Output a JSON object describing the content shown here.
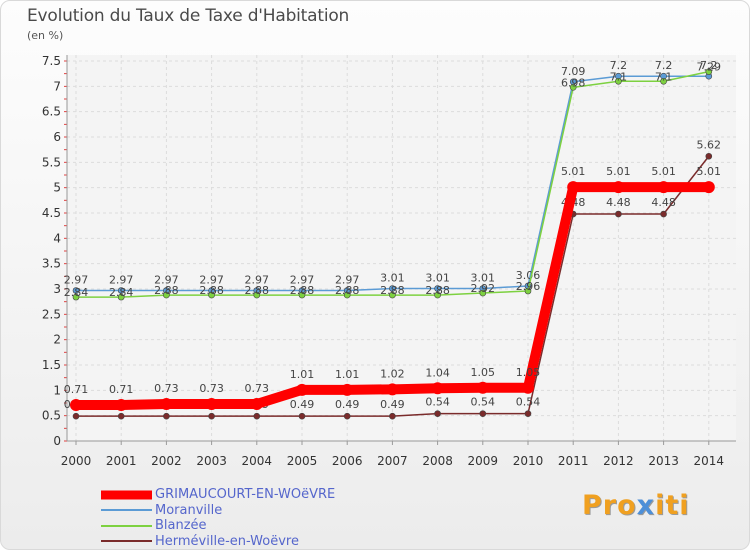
{
  "chart_data": {
    "type": "line",
    "title": "Evolution du Taux de Taxe d'Habitation",
    "ylabel": "(en %)",
    "xlabel": "",
    "ylim": [
      0,
      7.5
    ],
    "yticks": [
      0,
      0.5,
      1,
      1.5,
      2,
      2.5,
      3,
      3.5,
      4,
      4.5,
      5,
      5.5,
      6,
      6.5,
      7,
      7.5
    ],
    "ytick_labels": [
      "0",
      "0.5",
      "1",
      "1.5",
      "2",
      "2.5",
      "3",
      "3.5",
      "4",
      "4.5",
      "5",
      "5.5",
      "6",
      "6.5",
      "7",
      "7.5"
    ],
    "categories": [
      "2000",
      "2001",
      "2002",
      "2003",
      "2004",
      "2005",
      "2006",
      "2007",
      "2008",
      "2009",
      "2010",
      "2011",
      "2012",
      "2013",
      "2014"
    ],
    "series": [
      {
        "name": "GRIMAUCOURT-EN-WOëVRE",
        "color": "#ff0000",
        "values": [
          0.71,
          0.71,
          0.73,
          0.73,
          0.73,
          1.01,
          1.01,
          1.02,
          1.04,
          1.05,
          1.05,
          5.01,
          5.01,
          5.01,
          5.01
        ],
        "labels": [
          "0.71",
          "0.71",
          "0.73",
          "0.73",
          "0.73",
          "1.01",
          "1.01",
          "1.02",
          "1.04",
          "1.05",
          "1.05",
          "5.01",
          "5.01",
          "5.01",
          "5.01"
        ]
      },
      {
        "name": "Moranville",
        "color": "#5b9bd5",
        "values": [
          2.97,
          2.97,
          2.97,
          2.97,
          2.97,
          2.97,
          2.97,
          3.01,
          3.01,
          3.01,
          3.06,
          7.09,
          7.2,
          7.2,
          7.2
        ],
        "labels": [
          "2.97",
          "2.97",
          "2.97",
          "2.97",
          "2.97",
          "2.97",
          "2.97",
          "3.01",
          "3.01",
          "3.01",
          "3.06",
          "7.09",
          "7.2",
          "7.2",
          "7.2"
        ]
      },
      {
        "name": "Blanzée",
        "color": "#7dd140",
        "values": [
          2.84,
          2.84,
          2.88,
          2.88,
          2.88,
          2.88,
          2.88,
          2.88,
          2.88,
          2.92,
          2.96,
          6.98,
          7.1,
          7.1,
          7.29
        ],
        "labels": [
          "2.84",
          "2.84",
          "2.88",
          "2.88",
          "2.88",
          "2.88",
          "2.88",
          "2.88",
          "2.88",
          "2.92",
          "2.96",
          "6.98",
          "7.1",
          "7.1",
          "7.29"
        ]
      },
      {
        "name": "Herméville-en-Woëvre",
        "color": "#7a2b2b",
        "values": [
          0.49,
          0.49,
          0.49,
          0.49,
          0.49,
          0.49,
          0.49,
          0.49,
          0.54,
          0.54,
          0.54,
          4.48,
          4.48,
          4.48,
          5.62
        ],
        "labels": [
          "0.49",
          "0.49",
          "0.49",
          "0.49",
          "0.49",
          "0.49",
          "0.49",
          "0.49",
          "0.54",
          "0.54",
          "0.54",
          "4.48",
          "4.48",
          "4.48",
          "5.62"
        ]
      }
    ],
    "legend_position": "bottom-left"
  },
  "legend": {
    "items": [
      {
        "label": "GRIMAUCOURT-EN-WOëVRE"
      },
      {
        "label": "Moranville"
      },
      {
        "label": "Blanzée"
      },
      {
        "label": "Herméville-en-Woëvre"
      }
    ]
  },
  "logo": {
    "pre": "Pro",
    "mid": "x",
    "post": "iti"
  }
}
